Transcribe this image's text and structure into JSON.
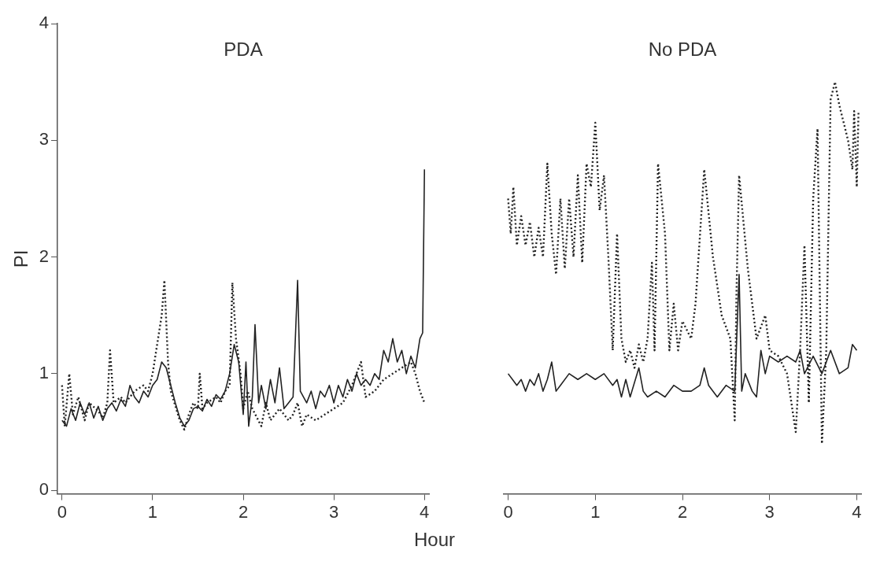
{
  "chart_data": [
    {
      "type": "line",
      "title": "PDA",
      "xlabel": "Hour",
      "ylabel": "PI",
      "xlim": [
        -0.05,
        4.05
      ],
      "ylim": [
        -0.03,
        4
      ],
      "xticks": [
        0,
        1,
        2,
        3,
        4
      ],
      "yticks": [
        0,
        1,
        2,
        3,
        4
      ],
      "grid": false,
      "legend": false,
      "marker": "none",
      "series": [
        {
          "color": "#222222",
          "line_style": "solid",
          "x": [
            0,
            0.05,
            0.1,
            0.15,
            0.2,
            0.25,
            0.3,
            0.35,
            0.4,
            0.45,
            0.5,
            0.55,
            0.6,
            0.65,
            0.7,
            0.75,
            0.8,
            0.85,
            0.9,
            0.95,
            1.0,
            1.05,
            1.1,
            1.15,
            1.2,
            1.25,
            1.3,
            1.35,
            1.4,
            1.45,
            1.5,
            1.55,
            1.6,
            1.65,
            1.7,
            1.75,
            1.8,
            1.85,
            1.9,
            1.95,
            2.0,
            2.03,
            2.06,
            2.1,
            2.13,
            2.17,
            2.2,
            2.25,
            2.3,
            2.35,
            2.4,
            2.45,
            2.5,
            2.55,
            2.6,
            2.63,
            2.7,
            2.75,
            2.8,
            2.85,
            2.9,
            2.95,
            3.0,
            3.05,
            3.1,
            3.15,
            3.2,
            3.25,
            3.3,
            3.35,
            3.4,
            3.45,
            3.5,
            3.55,
            3.6,
            3.65,
            3.7,
            3.75,
            3.8,
            3.85,
            3.9,
            3.95,
            3.98,
            4.0
          ],
          "values": [
            0.6,
            0.55,
            0.7,
            0.6,
            0.75,
            0.65,
            0.75,
            0.62,
            0.72,
            0.6,
            0.7,
            0.75,
            0.68,
            0.78,
            0.72,
            0.9,
            0.8,
            0.75,
            0.85,
            0.8,
            0.9,
            0.95,
            1.1,
            1.05,
            0.9,
            0.75,
            0.62,
            0.55,
            0.6,
            0.7,
            0.72,
            0.68,
            0.78,
            0.72,
            0.82,
            0.78,
            0.85,
            1.0,
            1.25,
            1.1,
            0.65,
            1.1,
            0.55,
            0.8,
            1.42,
            0.75,
            0.9,
            0.7,
            0.95,
            0.75,
            1.05,
            0.7,
            0.75,
            0.8,
            1.8,
            0.85,
            0.75,
            0.85,
            0.7,
            0.85,
            0.8,
            0.9,
            0.75,
            0.9,
            0.8,
            0.95,
            0.85,
            1.0,
            0.9,
            0.95,
            0.9,
            1.0,
            0.95,
            1.2,
            1.1,
            1.3,
            1.1,
            1.2,
            1.0,
            1.15,
            1.05,
            1.3,
            1.35,
            2.75
          ]
        },
        {
          "color": "#222222",
          "line_style": "dotted",
          "x": [
            0,
            0.03,
            0.08,
            0.12,
            0.18,
            0.25,
            0.3,
            0.4,
            0.45,
            0.5,
            0.53,
            0.57,
            0.65,
            0.7,
            0.8,
            0.9,
            0.95,
            1.0,
            1.05,
            1.1,
            1.13,
            1.17,
            1.2,
            1.3,
            1.35,
            1.4,
            1.45,
            1.5,
            1.52,
            1.55,
            1.6,
            1.7,
            1.75,
            1.8,
            1.85,
            1.88,
            1.92,
            1.97,
            2.0,
            2.05,
            2.1,
            2.2,
            2.25,
            2.3,
            2.4,
            2.5,
            2.55,
            2.6,
            2.65,
            2.7,
            2.8,
            2.9,
            3.0,
            3.1,
            3.2,
            3.3,
            3.35,
            3.45,
            3.55,
            3.65,
            3.75,
            3.85,
            3.9,
            3.95,
            4.0
          ],
          "values": [
            0.9,
            0.55,
            1.0,
            0.65,
            0.8,
            0.6,
            0.75,
            0.68,
            0.62,
            0.75,
            1.2,
            0.75,
            0.8,
            0.75,
            0.85,
            0.9,
            0.85,
            1.0,
            1.25,
            1.5,
            1.8,
            1.1,
            0.85,
            0.6,
            0.52,
            0.65,
            0.75,
            0.7,
            1.0,
            0.7,
            0.75,
            0.8,
            0.75,
            0.85,
            0.9,
            1.78,
            1.3,
            1.0,
            0.7,
            0.85,
            0.7,
            0.55,
            0.75,
            0.6,
            0.7,
            0.6,
            0.65,
            0.75,
            0.55,
            0.65,
            0.6,
            0.65,
            0.7,
            0.75,
            0.9,
            1.1,
            0.8,
            0.85,
            0.95,
            1.0,
            1.05,
            1.1,
            1.0,
            0.85,
            0.75
          ]
        }
      ]
    },
    {
      "type": "line",
      "title": "No PDA",
      "xlim": [
        -0.05,
        4.05
      ],
      "ylim": [
        -0.03,
        4
      ],
      "xticks": [
        0,
        1,
        2,
        3,
        4
      ],
      "tick_labels": "x",
      "grid": false,
      "legend": false,
      "marker": "none",
      "series": [
        {
          "color": "#222222",
          "line_style": "solid",
          "x": [
            0,
            0.05,
            0.1,
            0.15,
            0.2,
            0.25,
            0.3,
            0.35,
            0.4,
            0.45,
            0.5,
            0.55,
            0.6,
            0.7,
            0.8,
            0.9,
            1.0,
            1.1,
            1.2,
            1.25,
            1.3,
            1.35,
            1.4,
            1.5,
            1.55,
            1.6,
            1.7,
            1.8,
            1.9,
            2.0,
            2.1,
            2.2,
            2.25,
            2.3,
            2.4,
            2.5,
            2.6,
            2.65,
            2.68,
            2.72,
            2.8,
            2.85,
            2.9,
            2.95,
            3.0,
            3.1,
            3.2,
            3.3,
            3.35,
            3.4,
            3.5,
            3.6,
            3.7,
            3.8,
            3.9,
            3.95,
            4.0
          ],
          "values": [
            1.0,
            0.95,
            0.9,
            0.95,
            0.85,
            0.95,
            0.9,
            1.0,
            0.85,
            0.95,
            1.1,
            0.85,
            0.9,
            1.0,
            0.95,
            1.0,
            0.95,
            1.0,
            0.9,
            0.95,
            0.8,
            0.95,
            0.8,
            1.05,
            0.85,
            0.8,
            0.85,
            0.8,
            0.9,
            0.85,
            0.85,
            0.9,
            1.05,
            0.9,
            0.8,
            0.9,
            0.85,
            1.85,
            0.85,
            1.0,
            0.85,
            0.8,
            1.2,
            1.0,
            1.15,
            1.1,
            1.15,
            1.1,
            1.2,
            1.0,
            1.15,
            1.0,
            1.2,
            1.0,
            1.05,
            1.25,
            1.2
          ]
        },
        {
          "color": "#222222",
          "line_style": "dotted",
          "x": [
            0,
            0.03,
            0.06,
            0.1,
            0.15,
            0.2,
            0.25,
            0.3,
            0.35,
            0.4,
            0.45,
            0.5,
            0.55,
            0.6,
            0.65,
            0.7,
            0.75,
            0.8,
            0.85,
            0.9,
            0.95,
            1.0,
            1.05,
            1.1,
            1.15,
            1.2,
            1.25,
            1.3,
            1.35,
            1.4,
            1.45,
            1.5,
            1.55,
            1.6,
            1.65,
            1.68,
            1.72,
            1.8,
            1.85,
            1.9,
            1.95,
            2.0,
            2.1,
            2.15,
            2.25,
            2.35,
            2.45,
            2.55,
            2.6,
            2.62,
            2.65,
            2.7,
            2.75,
            2.8,
            2.85,
            2.95,
            3.0,
            3.1,
            3.2,
            3.3,
            3.35,
            3.4,
            3.45,
            3.5,
            3.55,
            3.6,
            3.65,
            3.7,
            3.75,
            3.8,
            3.85,
            3.9,
            3.95,
            3.97,
            4.0,
            4.02
          ],
          "values": [
            2.5,
            2.2,
            2.6,
            2.1,
            2.35,
            2.1,
            2.3,
            2.0,
            2.25,
            2.0,
            2.8,
            2.2,
            1.85,
            2.5,
            1.9,
            2.5,
            2.0,
            2.7,
            1.95,
            2.8,
            2.6,
            3.15,
            2.4,
            2.7,
            2.0,
            1.2,
            2.2,
            1.3,
            1.1,
            1.2,
            1.05,
            1.25,
            1.1,
            1.3,
            1.95,
            1.2,
            2.8,
            2.2,
            1.2,
            1.6,
            1.2,
            1.45,
            1.3,
            1.6,
            2.75,
            2.0,
            1.5,
            1.3,
            0.6,
            1.7,
            2.7,
            2.3,
            1.9,
            1.6,
            1.3,
            1.5,
            1.2,
            1.15,
            1.0,
            0.5,
            1.2,
            2.1,
            0.75,
            2.5,
            3.1,
            0.4,
            1.2,
            3.35,
            3.5,
            3.3,
            3.15,
            3.0,
            2.75,
            3.25,
            2.6,
            3.25
          ]
        }
      ]
    }
  ]
}
